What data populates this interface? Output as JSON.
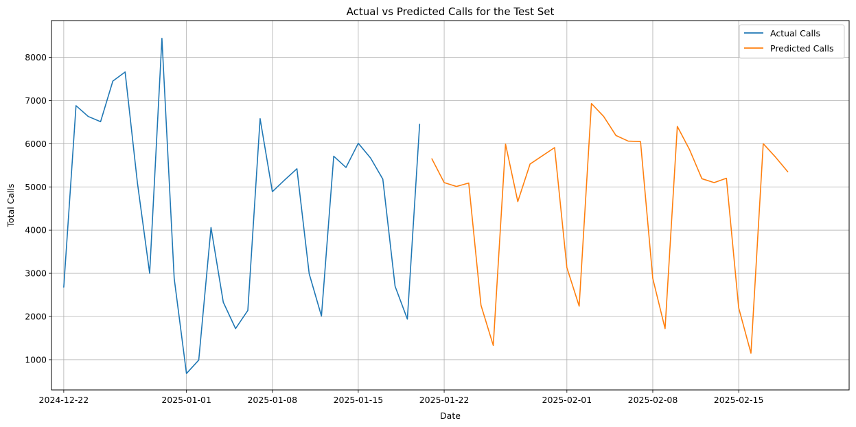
{
  "chart_data": {
    "type": "line",
    "title": "Actual vs Predicted Calls for the Test Set",
    "xlabel": "Date",
    "ylabel": "Total Calls",
    "grid": true,
    "legend_position": "top-right",
    "xlim": [
      "2024-12-21",
      "2025-02-24"
    ],
    "ylim": [
      300,
      8850
    ],
    "x_ticks": [
      "2024-12-22",
      "2025-01-01",
      "2025-01-08",
      "2025-01-15",
      "2025-01-22",
      "2025-02-01",
      "2025-02-08",
      "2025-02-15"
    ],
    "y_ticks": [
      1000,
      2000,
      3000,
      4000,
      5000,
      6000,
      7000,
      8000
    ],
    "series": [
      {
        "name": "Actual Calls",
        "color": "#1f77b4",
        "x": [
          "2024-12-22",
          "2024-12-23",
          "2024-12-24",
          "2024-12-25",
          "2024-12-26",
          "2024-12-27",
          "2024-12-28",
          "2024-12-29",
          "2024-12-30",
          "2024-12-31",
          "2025-01-01",
          "2025-01-02",
          "2025-01-03",
          "2025-01-04",
          "2025-01-05",
          "2025-01-06",
          "2025-01-07",
          "2025-01-08",
          "2025-01-09",
          "2025-01-10",
          "2025-01-11",
          "2025-01-12",
          "2025-01-13",
          "2025-01-14",
          "2025-01-15",
          "2025-01-16",
          "2025-01-17",
          "2025-01-18",
          "2025-01-19",
          "2025-01-20"
        ],
        "values": [
          2680,
          6880,
          6630,
          6510,
          7450,
          7660,
          5100,
          3000,
          8440,
          2880,
          680,
          990,
          4060,
          2330,
          1720,
          2140,
          6580,
          4890,
          5160,
          5420,
          2990,
          2010,
          5710,
          5450,
          6010,
          5670,
          5180,
          2700,
          1940,
          6450
        ]
      },
      {
        "name": "Predicted Calls",
        "color": "#ff7f0e",
        "x": [
          "2025-01-21",
          "2025-01-22",
          "2025-01-23",
          "2025-01-24",
          "2025-01-25",
          "2025-01-26",
          "2025-01-27",
          "2025-01-28",
          "2025-01-29",
          "2025-01-30",
          "2025-01-31",
          "2025-02-01",
          "2025-02-02",
          "2025-02-03",
          "2025-02-04",
          "2025-02-05",
          "2025-02-06",
          "2025-02-07",
          "2025-02-08",
          "2025-02-09",
          "2025-02-10",
          "2025-02-11",
          "2025-02-12",
          "2025-02-13",
          "2025-02-14",
          "2025-02-15",
          "2025-02-16",
          "2025-02-17",
          "2025-02-18",
          "2025-02-19"
        ],
        "values": [
          5650,
          5100,
          5010,
          5090,
          2260,
          1330,
          5990,
          4660,
          5530,
          5720,
          5910,
          3130,
          2240,
          6930,
          6630,
          6190,
          6060,
          6050,
          2880,
          1720,
          6400,
          5860,
          5190,
          5100,
          5200,
          2200,
          1150,
          6000,
          5690,
          5350
        ]
      }
    ]
  }
}
